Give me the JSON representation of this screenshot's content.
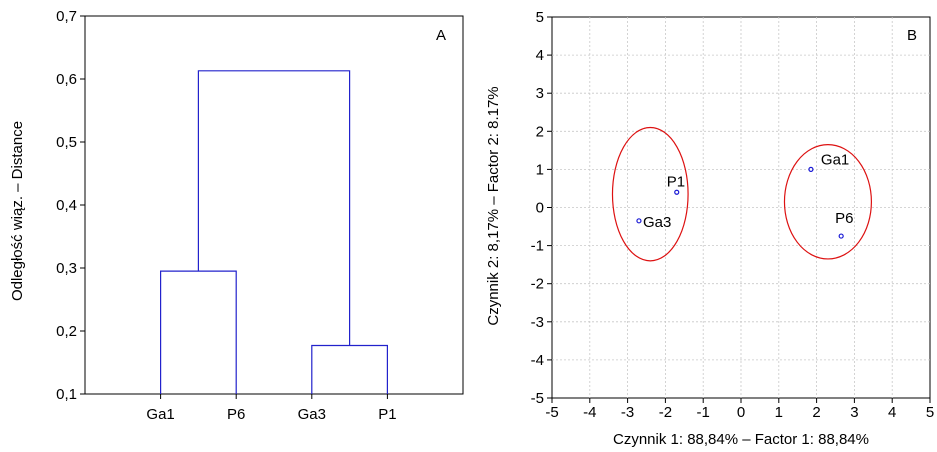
{
  "chart_data": [
    {
      "type": "dendrogram",
      "panel_label": "A",
      "ylabel": "Odległość wiąz. – Distance",
      "ylim": [
        0.1,
        0.7
      ],
      "yticks": [
        0.1,
        0.2,
        0.3,
        0.4,
        0.5,
        0.6,
        0.7
      ],
      "ytick_labels": [
        "0,1",
        "0,2",
        "0,3",
        "0,4",
        "0,5",
        "0,6",
        "0,7"
      ],
      "leaves": [
        "Ga1",
        "P6",
        "Ga3",
        "P1"
      ],
      "merges": [
        {
          "left": "Ga1",
          "right": "P6",
          "height": 0.295
        },
        {
          "left": "Ga3",
          "right": "P1",
          "height": 0.177
        },
        {
          "left": "Ga1+P6",
          "right": "Ga3+P1",
          "height": 0.613
        }
      ],
      "line_color": "#2222cc"
    },
    {
      "type": "scatter",
      "panel_label": "B",
      "xlabel": "Czynnik 1: 88,84% – Factor 1: 88,84%",
      "ylabel": "Czynnik 2:  8,17% – Factor 2: 8.17%",
      "xlim": [
        -5,
        5
      ],
      "ylim": [
        -5,
        5
      ],
      "xticks": [
        -5,
        -4,
        -3,
        -2,
        -1,
        0,
        1,
        2,
        3,
        4,
        5
      ],
      "yticks": [
        -5,
        -4,
        -3,
        -2,
        -1,
        0,
        1,
        2,
        3,
        4,
        5
      ],
      "grid": true,
      "points": [
        {
          "label": "P1",
          "x": -1.7,
          "y": 0.4
        },
        {
          "label": "Ga3",
          "x": -2.7,
          "y": -0.35
        },
        {
          "label": "Ga1",
          "x": 1.85,
          "y": 1.0
        },
        {
          "label": "P6",
          "x": 2.65,
          "y": -0.75
        }
      ],
      "ellipses": [
        {
          "cx": -2.4,
          "cy": 0.35,
          "rx": 1.0,
          "ry": 1.75
        },
        {
          "cx": 2.3,
          "cy": 0.15,
          "rx": 1.15,
          "ry": 1.5
        }
      ],
      "point_color": "#1a1ad6",
      "ellipse_color": "#dd1111"
    }
  ]
}
